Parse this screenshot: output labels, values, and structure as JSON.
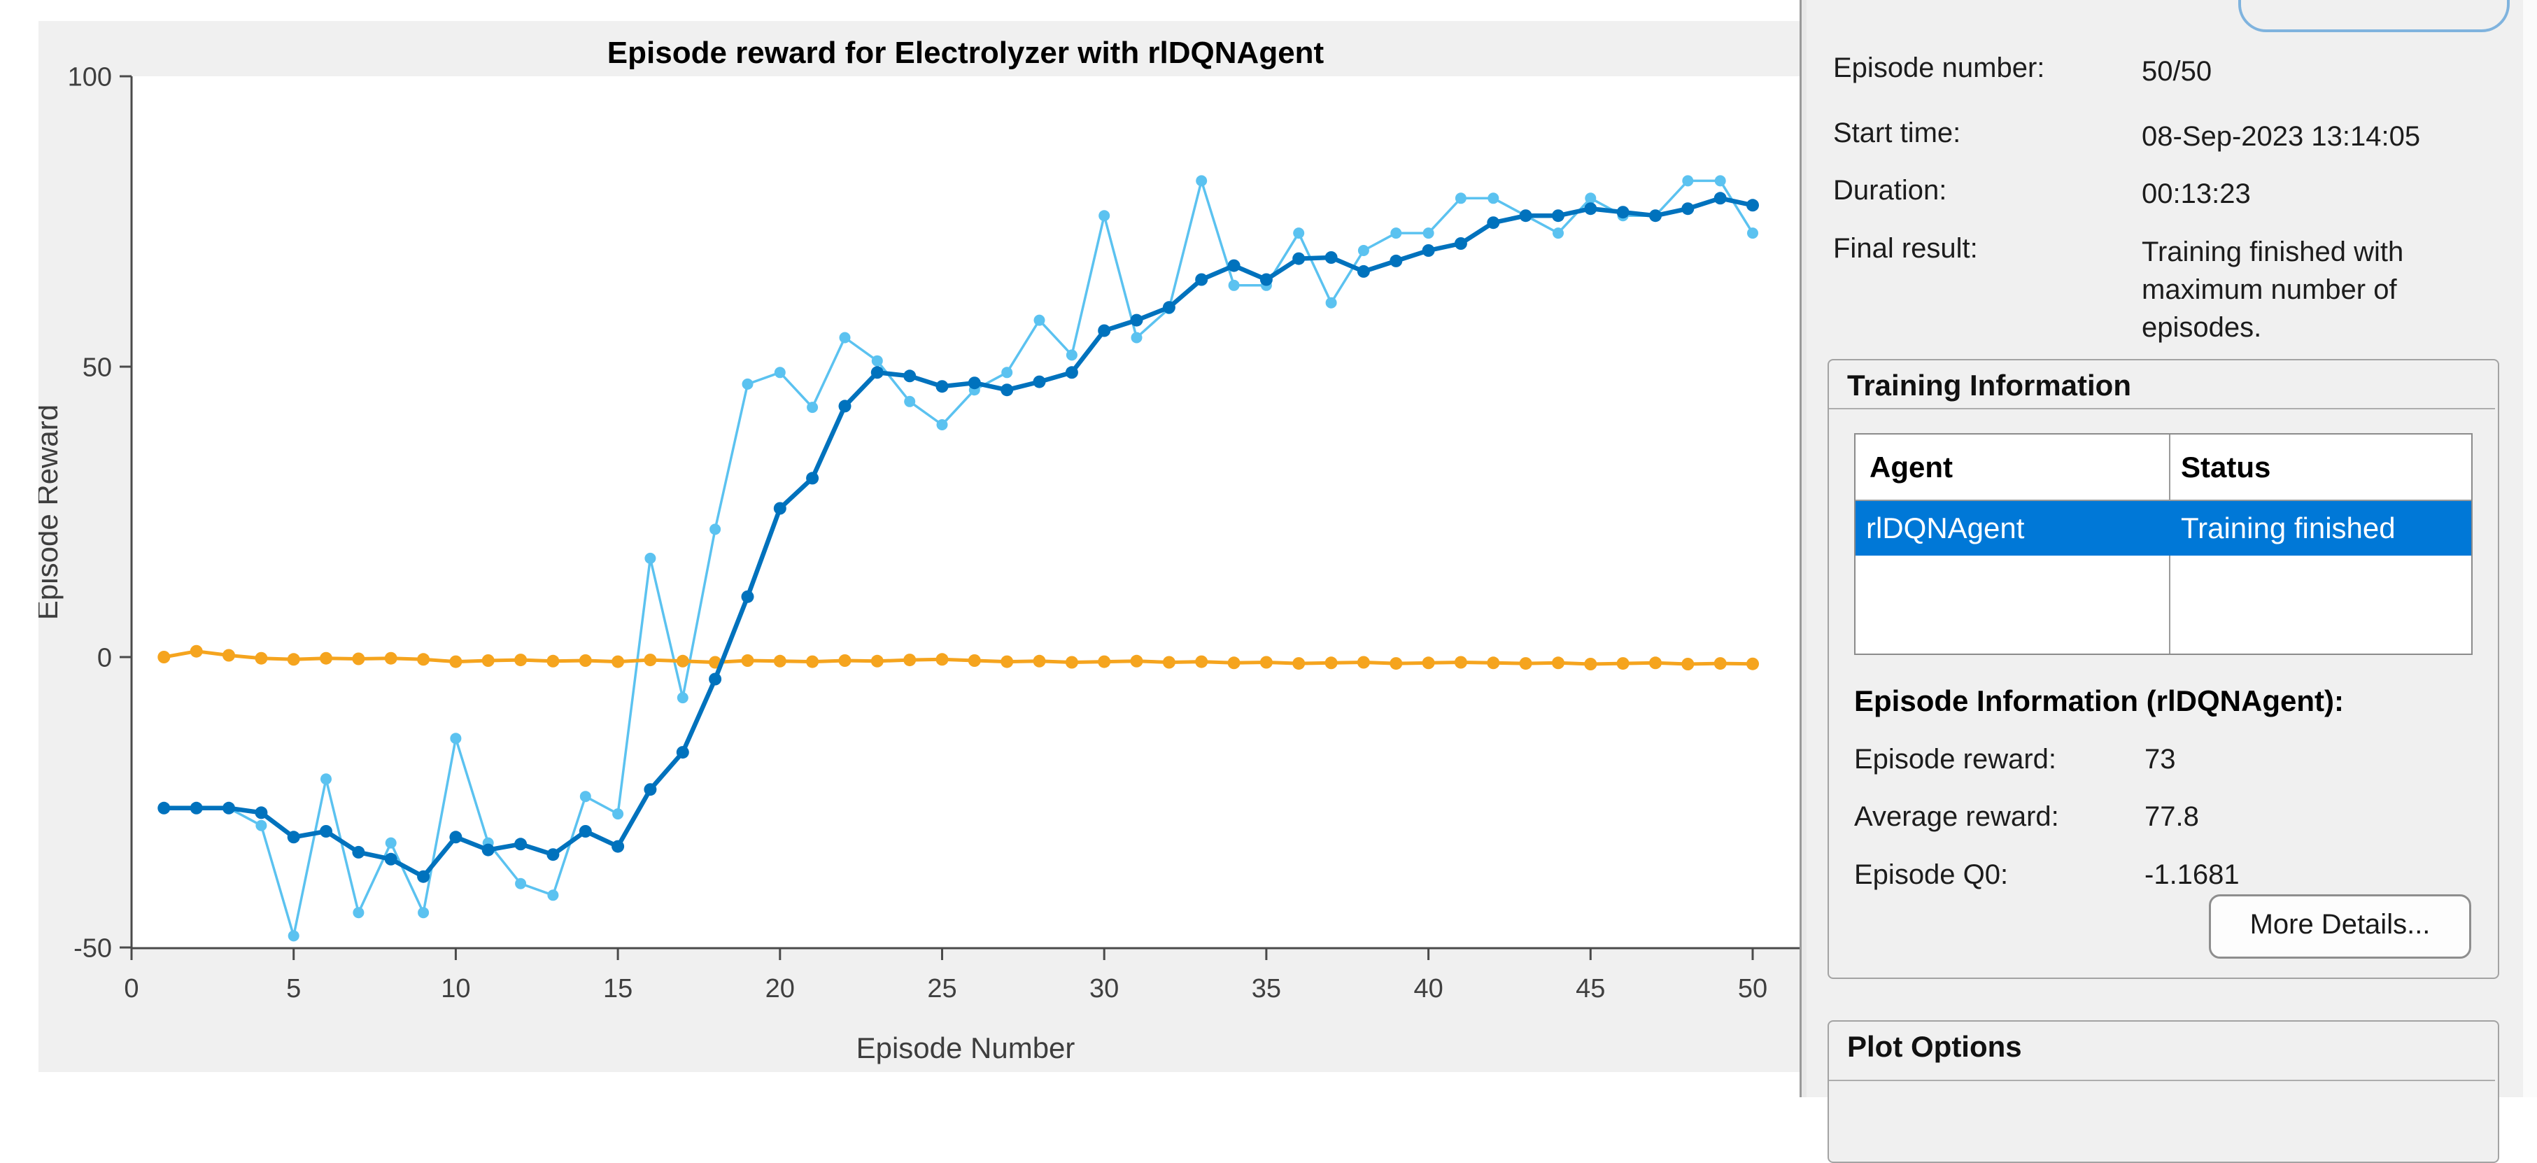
{
  "chart_data": {
    "type": "line",
    "title": "Episode reward for Electrolyzer with rlDQNAgent",
    "xlabel": "Episode Number",
    "ylabel": "Episode Reward",
    "xlim": [
      0,
      50
    ],
    "ylim": [
      -50,
      100
    ],
    "xticks": [
      0,
      5,
      10,
      15,
      20,
      25,
      30,
      35,
      40,
      45,
      50
    ],
    "yticks": [
      -50,
      0,
      50,
      100
    ],
    "grid": false,
    "legend_position": "none",
    "x": [
      1,
      2,
      3,
      4,
      5,
      6,
      7,
      8,
      9,
      10,
      11,
      12,
      13,
      14,
      15,
      16,
      17,
      18,
      19,
      20,
      21,
      22,
      23,
      24,
      25,
      26,
      27,
      28,
      29,
      30,
      31,
      32,
      33,
      34,
      35,
      36,
      37,
      38,
      39,
      40,
      41,
      42,
      43,
      44,
      45,
      46,
      47,
      48,
      49,
      50
    ],
    "series": [
      {
        "name": "EpisodeReward",
        "color": "#5bc2f0",
        "line_width": 3.5,
        "marker_radius": 8,
        "z": 1,
        "values": [
          -26,
          -26,
          -26,
          -29,
          -48,
          -21,
          -44,
          -32,
          -44,
          -14,
          -32,
          -39,
          -41,
          -24,
          -27,
          17,
          -7,
          22,
          47,
          49,
          43,
          55,
          51,
          44,
          40,
          46,
          49,
          58,
          52,
          76,
          55,
          60,
          82,
          64,
          64,
          73,
          61,
          70,
          73,
          73,
          79,
          79,
          76,
          73,
          79,
          76,
          76,
          82,
          82,
          73
        ]
      },
      {
        "name": "AverageReward",
        "color": "#0072bd",
        "line_width": 6.5,
        "marker_radius": 9,
        "z": 3,
        "values": [
          -26,
          -26,
          -26,
          -26.8,
          -31,
          -30,
          -33.6,
          -34.8,
          -37.8,
          -31,
          -33.2,
          -32.2,
          -34,
          -30,
          -32.6,
          -22.8,
          -16.4,
          -3.8,
          10.4,
          25.6,
          30.8,
          43.2,
          49,
          48.4,
          46.6,
          47.2,
          46,
          47.4,
          49,
          56.2,
          58,
          60.2,
          65,
          67.4,
          65,
          68.6,
          68.8,
          66.4,
          68.2,
          70,
          71.2,
          74.8,
          76,
          76,
          77.2,
          76.6,
          76,
          77.2,
          79,
          77.8
        ]
      },
      {
        "name": "EpisodeQ0",
        "color": "#f5a41e",
        "line_width": 5,
        "marker_radius": 9,
        "z": 2,
        "values": [
          0,
          1,
          0.3,
          -0.2,
          -0.4,
          -0.2,
          -0.3,
          -0.2,
          -0.4,
          -0.8,
          -0.6,
          -0.5,
          -0.7,
          -0.6,
          -0.8,
          -0.5,
          -0.7,
          -0.9,
          -0.6,
          -0.7,
          -0.8,
          -0.6,
          -0.7,
          -0.5,
          -0.4,
          -0.6,
          -0.8,
          -0.7,
          -0.9,
          -0.8,
          -0.7,
          -0.9,
          -0.8,
          -1.0,
          -0.9,
          -1.1,
          -1.0,
          -0.9,
          -1.1,
          -1.0,
          -0.9,
          -1.0,
          -1.1,
          -1.0,
          -1.2,
          -1.1,
          -1.0,
          -1.2,
          -1.1,
          -1.1681
        ]
      }
    ]
  },
  "panel": {
    "info_rows": [
      {
        "label": "Episode number:",
        "value": "50/50"
      },
      {
        "label": "Start time:",
        "value": "08-Sep-2023 13:14:05"
      },
      {
        "label": "Duration:",
        "value": "00:13:23"
      },
      {
        "label": "Final result:",
        "value": "Training finished with maximum number of episodes."
      }
    ],
    "training_information": {
      "title": "Training Information",
      "table": {
        "headers": [
          "Agent",
          "Status"
        ],
        "rows": [
          {
            "agent": "rlDQNAgent",
            "status": "Training finished",
            "selected": true
          }
        ]
      },
      "episode_information": {
        "title": "Episode Information (rlDQNAgent):",
        "rows": [
          {
            "label": "Episode reward:",
            "value": "73"
          },
          {
            "label": "Average reward:",
            "value": "77.8"
          },
          {
            "label": "Episode Q0:",
            "value": "-1.1681"
          }
        ]
      },
      "more_details_label": "More Details..."
    },
    "plot_options": {
      "title": "Plot Options"
    }
  },
  "colors": {
    "selection_blue": "#0078d7",
    "panel_background": "#f0f0f0",
    "figure_background": "#f0f0f0",
    "collapsed_button_border": "#7fb3de",
    "series_episode_reward": "#5bc2f0",
    "series_average_reward": "#0072bd",
    "series_episode_q0": "#f5a41e"
  }
}
